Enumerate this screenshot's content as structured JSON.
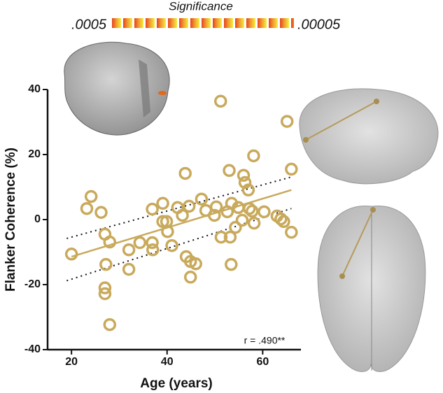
{
  "chart_data": {
    "type": "scatter",
    "y_label": "Flanker Coherence (%)",
    "x_label": "Age (years)",
    "annotation": "r = .490**",
    "colorbar": {
      "title": "Significance",
      "min_label": ".0005",
      "max_label": ".00005"
    },
    "xlim": [
      15,
      68
    ],
    "xticks": [
      20,
      40,
      60
    ],
    "ylim": [
      -40,
      40
    ],
    "yticks": [
      -40,
      -20,
      0,
      20,
      40
    ],
    "color": "#c9aa5c",
    "x": [
      20,
      23.2,
      24.1,
      26.2,
      27,
      27.2,
      27,
      27,
      28,
      28,
      32,
      32,
      34.3,
      36.9,
      36.9,
      37,
      39.1,
      39.1,
      39.9,
      40.1,
      41,
      42.2,
      43.2,
      43.8,
      44,
      44.6,
      44.9,
      44.9,
      46,
      47.2,
      48.1,
      49.9,
      50.3,
      51.2,
      51.3,
      52.6,
      53,
      53.2,
      53.4,
      53.5,
      54.3,
      54.9,
      55.7,
      56,
      56.3,
      57,
      57.2,
      57.8,
      58.2,
      58.1,
      60.3,
      63,
      63.8,
      64.4,
      65.1,
      66,
      66
    ],
    "values": [
      -10.6,
      3.4,
      7.1,
      2.2,
      -4.5,
      -13.8,
      -21,
      -22.8,
      -6.9,
      -32.3,
      -9.3,
      -15.3,
      -7.1,
      3.2,
      -7.1,
      -9.3,
      5,
      -0.6,
      -0.6,
      -3.7,
      -8,
      3.7,
      1.3,
      14.2,
      -11.4,
      4.1,
      -12.9,
      -17.7,
      -13.6,
      6.3,
      2.8,
      1.3,
      3.9,
      36.4,
      -5.4,
      2.4,
      15.1,
      -5.4,
      -13.8,
      5,
      -2.4,
      3.7,
      -0.2,
      13.6,
      11.4,
      9.1,
      3.4,
      2.6,
      -1.1,
      19.6,
      2.4,
      1.1,
      0.2,
      -0.6,
      30.2,
      15.5,
      -3.9
    ],
    "fit": {
      "x": [
        20,
        66
      ],
      "y": [
        -11.4,
        9.1
      ]
    },
    "ci_upper": {
      "x": [
        19,
        66
      ],
      "y": [
        -5.8,
        13.1
      ]
    },
    "ci_lower": {
      "x": [
        19,
        66
      ],
      "y": [
        -18.8,
        3.4
      ]
    }
  }
}
